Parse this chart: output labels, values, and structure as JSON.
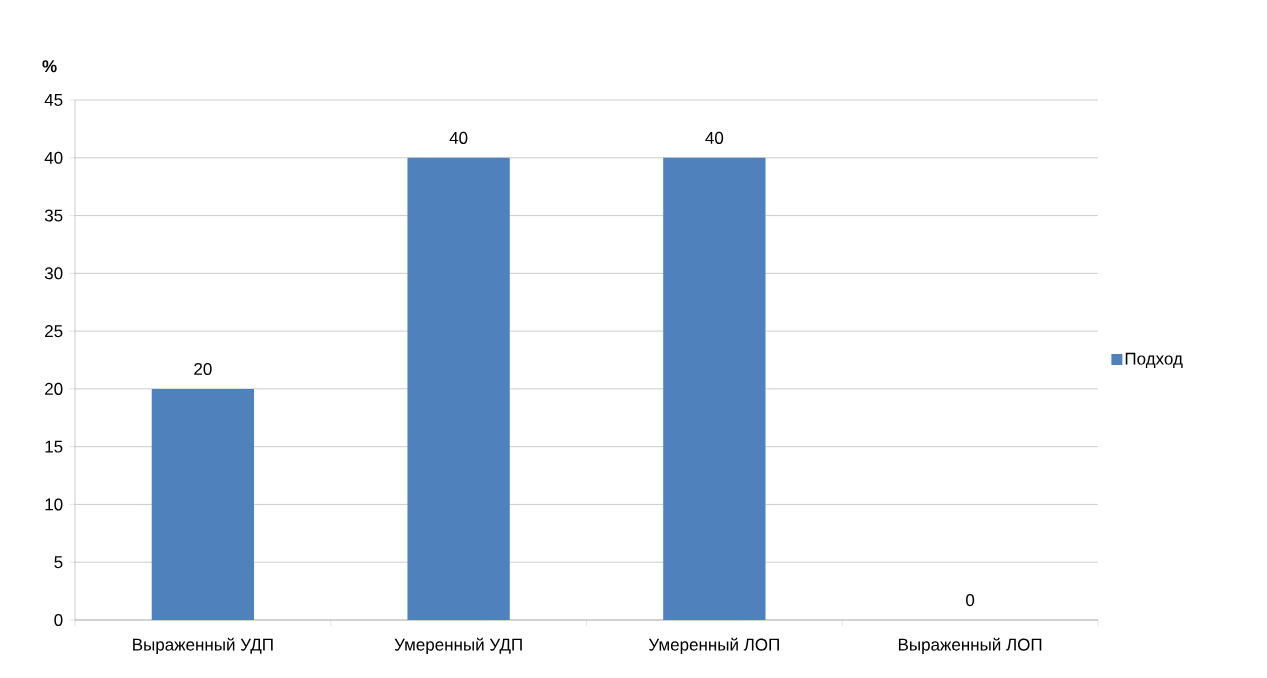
{
  "chart_data": {
    "type": "bar",
    "ylabel": "%",
    "categories": [
      "Выраженный УДП",
      "Умеренный УДП",
      "Умеренный ЛОП",
      "Выраженный ЛОП"
    ],
    "series": [
      {
        "name": "Подход",
        "color": "#4f81bd",
        "values": [
          20,
          40,
          40,
          0
        ]
      }
    ],
    "ylim": [
      0,
      45
    ],
    "yticks": [
      0,
      5,
      10,
      15,
      20,
      25,
      30,
      35,
      40,
      45
    ],
    "grid": "y",
    "legend": "right",
    "data_labels": true
  }
}
